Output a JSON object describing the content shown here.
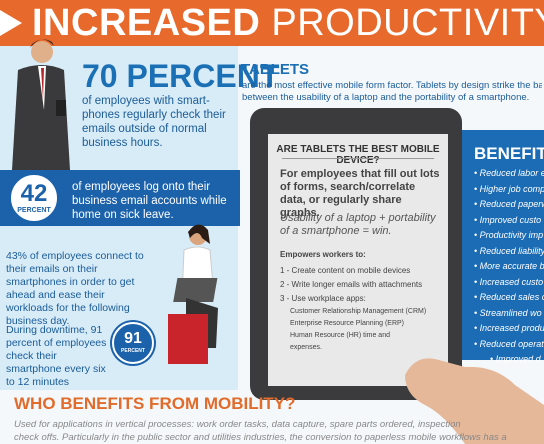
{
  "header": {
    "title_bold": "INCREASED",
    "title_light": "PRODUCTIVITY"
  },
  "stats": {
    "headline": "70 PERCENT",
    "headline_text": "of employees with smart-phones regularly check their emails outside of normal business hours.",
    "badge1_number": "42",
    "badge1_unit": "PERCENT",
    "badge1_text": "of employees log onto their business email accounts while home on sick leave.",
    "para": "43% of employees connect to their emails on their smartphones in order to get ahead and ease their workloads for the following business day.",
    "downtime": "During downtime, 91 percent of employees check their smartphone every six to 12 minutes",
    "badge2_number": "91",
    "badge2_unit": "PERCENT"
  },
  "tablets": {
    "title": "TABLETS",
    "text": "are the most effective mobile form factor. Tablets by design strike the bala",
    "text2": "between the usability of a laptop and the portability of a smartphone."
  },
  "screen": {
    "question": "ARE TABLETS THE BEST MOBILE DEVICE?",
    "lead": "For employees that fill out lots of forms, search/correlate data, or regularly share graphs.",
    "formula": "Usability of a laptop + portability of a smartphone = win.",
    "empowers": "Empowers workers to:",
    "items": [
      "1 - Create content on mobile devices",
      "2 - Write longer emails with attachments",
      "3 - Use workplace apps:"
    ],
    "apps": [
      "Customer Relationship Management (CRM)",
      "Enterprise Resource Planning (ERP)",
      "Human Resource (HR) time and",
      "expenses."
    ]
  },
  "benefits": {
    "title": "BENEFITS I",
    "items": [
      "• Reduced labor e",
      "• Higher job comp",
      "• Reduced paperw",
      "• Improved custo",
      "• Productivity imp",
      "• Reduced liability",
      "• More accurate b",
      "• Increased custo",
      "• Reduced sales c",
      "• Streamlined wo",
      "• Increased produ",
      "• Reduced operat",
      "• Improved d"
    ]
  },
  "who": {
    "title": "WHO BENEFITS FROM MOBILITY?",
    "lines": [
      "Used for applications in vertical processes: work order tasks, data capture, spare parts ordered, inspection",
      "check offs. Particularly in the public sector and utilities industries, the conversion to paperless mobile workflows has a"
    ]
  }
}
